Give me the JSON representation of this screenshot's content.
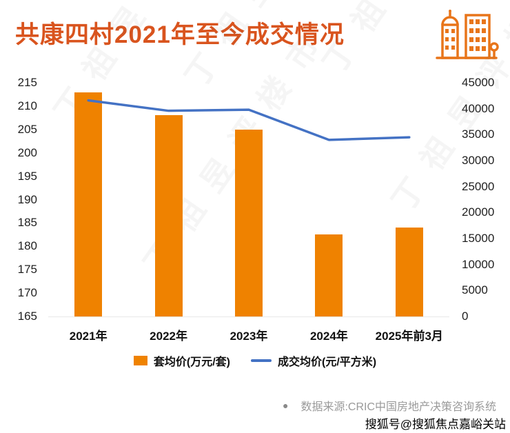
{
  "page": {
    "title": "共康四村2021年至今成交情况",
    "source_note": "数据来源:CRIC中国房地产决策咨询系统",
    "source_bullet": "●",
    "credit": "搜狐号@搜狐焦点嘉峪关站",
    "watermark": "丁祖昱评楼市"
  },
  "colors": {
    "title": "#d9541e",
    "bar": "#ef8200",
    "line": "#4472c4",
    "source_text": "#9a9a9a"
  },
  "chart_data": {
    "type": "bar",
    "subtype": "bar+line dual axis",
    "categories": [
      "2021年",
      "2022年",
      "2023年",
      "2024年",
      "2025年前3月"
    ],
    "series": [
      {
        "name": "套均价(万元/套)",
        "type": "bar",
        "axis": "left",
        "values": [
          213,
          208,
          205,
          182.5,
          184
        ]
      },
      {
        "name": "成交均价(元/平方米)",
        "type": "line",
        "axis": "right",
        "values": [
          41600,
          39600,
          39800,
          34000,
          34500
        ]
      }
    ],
    "left_axis": {
      "min": 165,
      "max": 215,
      "step": 5,
      "ticks": [
        215,
        210,
        205,
        200,
        195,
        190,
        185,
        180,
        175,
        170,
        165
      ]
    },
    "right_axis": {
      "min": 0,
      "max": 45000,
      "step": 5000,
      "ticks": [
        45000,
        40000,
        35000,
        30000,
        25000,
        20000,
        15000,
        10000,
        5000,
        0
      ]
    },
    "legend": [
      "套均价(万元/套)",
      "成交均价(元/平方米)"
    ],
    "grid": "off",
    "legend_position": "bottom"
  }
}
